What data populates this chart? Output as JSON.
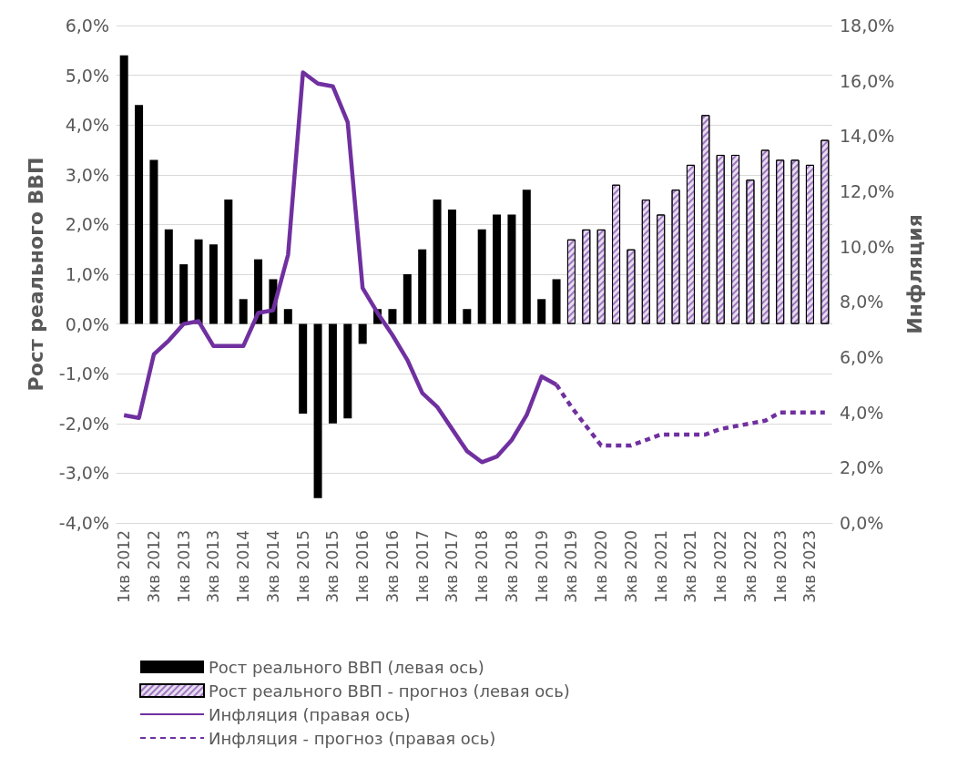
{
  "chart_data": {
    "type": "bar",
    "ylabel": "Рост реального ВВП",
    "y2label": "Инфляция",
    "categories": [
      "1кв 2012",
      null,
      "3кв 2012",
      null,
      "1кв 2013",
      null,
      "3кв 2013",
      null,
      "1кв 2014",
      null,
      "3кв 2014",
      null,
      "1кв 2015",
      null,
      "3кв 2015",
      null,
      "1кв 2016",
      null,
      "3кв 2016",
      null,
      "1кв 2017",
      null,
      "3кв 2017",
      null,
      "1кв 2018",
      null,
      "3кв 2018",
      null,
      "1кв 2019",
      null,
      "3кв 2019",
      null,
      "1кв 2020",
      null,
      "3кв 2020",
      null,
      "1кв 2021",
      null,
      "3кв 2021",
      null,
      "1кв 2022",
      null,
      "3кв 2022",
      null,
      "1кв 2023",
      null,
      "3кв 2023",
      null
    ],
    "series": [
      {
        "name": "Рост реального ВВП (левая ось)",
        "color": "#000000",
        "values": [
          5.4,
          4.4,
          3.3,
          1.9,
          1.2,
          1.7,
          1.6,
          2.5,
          0.5,
          1.3,
          0.9,
          0.3,
          -1.8,
          -3.5,
          -2.0,
          -1.9,
          -0.4,
          0.3,
          0.3,
          1.0,
          1.5,
          2.5,
          2.3,
          0.3,
          1.9,
          2.2,
          2.2,
          2.7,
          0.5,
          0.9,
          null,
          null,
          null,
          null,
          null,
          null,
          null,
          null,
          null,
          null,
          null,
          null,
          null,
          null,
          null,
          null,
          null,
          null
        ]
      },
      {
        "name": "Рост реального ВВП - прогноз (левая ось)",
        "color": "#e6ddf0",
        "values": [
          null,
          null,
          null,
          null,
          null,
          null,
          null,
          null,
          null,
          null,
          null,
          null,
          null,
          null,
          null,
          null,
          null,
          null,
          null,
          null,
          null,
          null,
          null,
          null,
          null,
          null,
          null,
          null,
          null,
          null,
          1.7,
          1.9,
          1.9,
          2.8,
          1.5,
          2.5,
          2.2,
          2.7,
          3.2,
          4.2,
          3.4,
          3.4,
          2.9,
          3.5,
          3.3,
          3.3,
          3.2,
          3.7
        ]
      },
      {
        "name": "Инфляция (правая ось)",
        "type": "line",
        "axis": "y2",
        "line_style": "solid",
        "color": "#7030a0",
        "values": [
          3.9,
          3.8,
          6.1,
          6.6,
          7.2,
          7.3,
          6.4,
          6.4,
          6.4,
          7.6,
          7.7,
          9.7,
          16.3,
          15.9,
          15.8,
          14.5,
          8.5,
          7.6,
          6.8,
          5.9,
          4.7,
          4.2,
          3.4,
          2.6,
          2.2,
          2.4,
          3.0,
          3.9,
          5.3,
          5.0,
          null,
          null,
          null,
          null,
          null,
          null,
          null,
          null,
          null,
          null,
          null,
          null,
          null,
          null,
          null,
          null,
          null,
          null
        ]
      },
      {
        "name": "Инфляция - прогноз (правая ось)",
        "type": "line",
        "axis": "y2",
        "line_style": "dashed",
        "color": "#7030a0",
        "values": [
          null,
          null,
          null,
          null,
          null,
          null,
          null,
          null,
          null,
          null,
          null,
          null,
          null,
          null,
          null,
          null,
          null,
          null,
          null,
          null,
          null,
          null,
          null,
          null,
          null,
          null,
          null,
          null,
          null,
          5.0,
          4.2,
          3.5,
          2.8,
          2.8,
          2.8,
          3.0,
          3.2,
          3.2,
          3.2,
          3.2,
          3.4,
          3.5,
          3.6,
          3.7,
          4.0,
          4.0,
          4.0,
          4.0
        ]
      }
    ],
    "ylim": [
      -4,
      6
    ],
    "yticks": [
      {
        "value": -4,
        "label": "-4,0%"
      },
      {
        "value": -3,
        "label": "-3,0%"
      },
      {
        "value": -2,
        "label": "-2,0%"
      },
      {
        "value": -1,
        "label": "-1,0%"
      },
      {
        "value": 0,
        "label": "0,0%"
      },
      {
        "value": 1,
        "label": "1,0%"
      },
      {
        "value": 2,
        "label": "2,0%"
      },
      {
        "value": 3,
        "label": "3,0%"
      },
      {
        "value": 4,
        "label": "4,0%"
      },
      {
        "value": 5,
        "label": "5,0%"
      },
      {
        "value": 6,
        "label": "6,0%"
      }
    ],
    "y2lim": [
      0,
      18
    ],
    "y2ticks": [
      {
        "value": 0,
        "label": "0,0%"
      },
      {
        "value": 2,
        "label": "2,0%"
      },
      {
        "value": 4,
        "label": "4,0%"
      },
      {
        "value": 6,
        "label": "6,0%"
      },
      {
        "value": 8,
        "label": "8,0%"
      },
      {
        "value": 10,
        "label": "10,0%"
      },
      {
        "value": 12,
        "label": "12,0%"
      },
      {
        "value": 14,
        "label": "14,0%"
      },
      {
        "value": 16,
        "label": "16,0%"
      },
      {
        "value": 18,
        "label": "18,0%"
      }
    ],
    "grid": "y",
    "legend": "bottom",
    "marker": "none"
  }
}
